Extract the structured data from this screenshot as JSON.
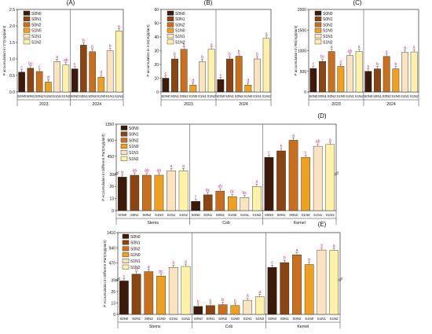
{
  "colors": {
    "S0N0": "#3d1a0a",
    "S0N1": "#8b4513",
    "S0N2": "#c8701e",
    "S1N0": "#f0a020",
    "S1N1": "#fbe3c0",
    "S1N2": "#fff2a8",
    "letter": "#e0188c",
    "axis": "#333333"
  },
  "chart_data": [
    {
      "type": "bar",
      "panel": "(A)",
      "ylabel": "P accumulation in V7(mg/plant)",
      "ylim": [
        0,
        2.5
      ],
      "yticks": [
        "0.0",
        "0.5",
        "1.0",
        "1.5",
        "2.0",
        "2.5"
      ],
      "groups": [
        "2023",
        "2024"
      ],
      "categories": [
        "S0N0",
        "S0N1",
        "S0N2",
        "S1N0",
        "S1N1",
        "S1N2",
        "S0N0",
        "S0N1",
        "S0N2",
        "S1N0",
        "S1N1",
        "S1N2"
      ],
      "values": [
        0.6,
        0.72,
        0.62,
        0.3,
        0.92,
        0.82,
        0.7,
        1.42,
        1.22,
        0.45,
        1.25,
        1.85
      ],
      "letters": [
        "c",
        "bc",
        "c",
        "d",
        "a",
        "ab",
        "c",
        "b",
        "b",
        "d",
        "b",
        "a"
      ],
      "legend": [
        "S0N0",
        "S0N1",
        "S0N2",
        "S1N0",
        "S1N1",
        "S1N2"
      ]
    },
    {
      "type": "bar",
      "panel": "(B)",
      "ylabel": "P accumulation in V15(mg/plant)",
      "ylim": [
        0,
        60
      ],
      "yticks": [
        "0",
        "10",
        "20",
        "30",
        "40",
        "50",
        "60"
      ],
      "groups": [
        "2023",
        "2024"
      ],
      "categories": [
        "S0N0",
        "S0N1",
        "S0N2",
        "S1N0",
        "S1N1",
        "S1N2",
        "S0N0",
        "S0N1",
        "S0N2",
        "S1N0",
        "S1N1",
        "S1N2"
      ],
      "values": [
        10,
        24,
        31,
        5,
        22,
        31,
        9,
        24,
        26,
        5,
        24,
        39
      ],
      "letters": [
        "c",
        "b",
        "a",
        "d",
        "b",
        "a",
        "c",
        "b",
        "b",
        "d",
        "b",
        "a"
      ],
      "legend": [
        "S0N0",
        "S0N1",
        "S0N2",
        "S1N0",
        "S1N1",
        "S1N2"
      ]
    },
    {
      "type": "bar",
      "panel": "(C)",
      "ylabel": "P accumulation in R6(mg/plant)",
      "ylim": [
        0,
        2000
      ],
      "yticks": [
        "0",
        "500",
        "1000",
        "1500",
        "2000"
      ],
      "groups": [
        "2023",
        "2024"
      ],
      "categories": [
        "S0N0",
        "S0N1",
        "S0N2",
        "S1N0",
        "S1N1",
        "S1N2",
        "S0N0",
        "S0N1",
        "S0N2",
        "S1N0",
        "S1N1",
        "S1N2"
      ],
      "values": [
        570,
        740,
        980,
        620,
        880,
        980,
        500,
        560,
        860,
        560,
        960,
        970
      ],
      "letters": [
        "c",
        "bc",
        "a",
        "c",
        "ab",
        "a",
        "b",
        "b",
        "a",
        "b",
        "a",
        "a"
      ],
      "legend": [
        "S0N0",
        "S0N1",
        "S0N2",
        "S1N0",
        "S1N1",
        "S1N2"
      ]
    },
    {
      "type": "bar",
      "panel": "(D)",
      "ylabel": "P Accumulation in Different Part(mg/plant)",
      "scale": "broken",
      "yticks": [
        "0",
        "13",
        "26",
        "39",
        "450",
        "900",
        "1350"
      ],
      "groups": [
        "Stems",
        "Cob",
        "Kernel"
      ],
      "categories": [
        "S0N0",
        "S0N1",
        "S0N2",
        "S1N0",
        "S1N1",
        "S1N2",
        "S0N0",
        "S0N1",
        "S0N2",
        "S1N0",
        "S1N1",
        "S1N2",
        "S0N0",
        "S0N1",
        "S0N2",
        "S1N0",
        "S1N1",
        "S1N2"
      ],
      "values": [
        36,
        38,
        38,
        38,
        40,
        40,
        10,
        17,
        21,
        15,
        14,
        26,
        420,
        600,
        900,
        420,
        730,
        780
      ],
      "letters": [
        "b",
        "ab",
        "ab",
        "ab",
        "a",
        "a",
        "c",
        "bc",
        "ab",
        "bc",
        "bc",
        "a",
        "c",
        "b",
        "a",
        "c",
        "ab",
        "a"
      ],
      "legend": [
        "S0N0",
        "S0N1",
        "S0N2",
        "S1N0",
        "S1N1",
        "S1N2"
      ]
    },
    {
      "type": "bar",
      "panel": "(E)",
      "ylabel": "P Accumulation in Different Part(mg/plant)",
      "scale": "broken",
      "yticks": [
        "0",
        "13",
        "26",
        "39",
        "470",
        "940",
        "1410"
      ],
      "groups": [
        "Stems",
        "Cob",
        "Kernel"
      ],
      "categories": [
        "S0N0",
        "S0N1",
        "S0N2",
        "S1N0",
        "S1N1",
        "S1N2",
        "S0N0",
        "S0N1",
        "S0N2",
        "S1N0",
        "S1N1",
        "S1N2",
        "S0N0",
        "S0N1",
        "S0N2",
        "S1N0",
        "S1N1",
        "S1N2"
      ],
      "values": [
        38,
        120,
        200,
        60,
        330,
        360,
        9,
        10,
        11,
        10,
        16,
        20,
        330,
        480,
        720,
        420,
        870,
        860
      ],
      "letters": [
        "c",
        "b",
        "a",
        "bc",
        "a",
        "a",
        "b",
        "b",
        "b",
        "b",
        "a",
        "a",
        "c",
        "b",
        "a",
        "b",
        "a",
        "a"
      ],
      "legend": [
        "S0N0",
        "S0N1",
        "S0N2",
        "S1N0",
        "S1N1",
        "S1N2"
      ]
    }
  ]
}
